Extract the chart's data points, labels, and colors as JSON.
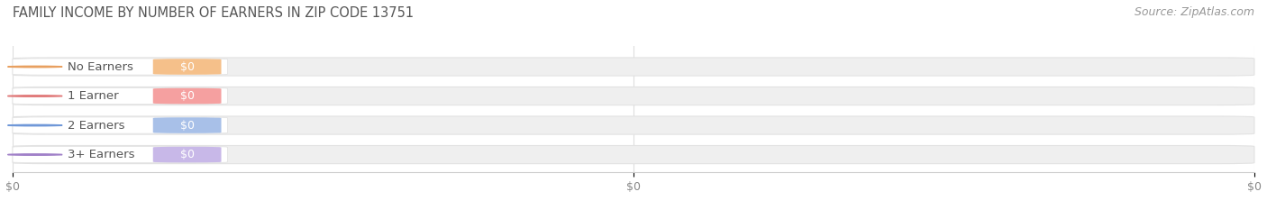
{
  "title": "FAMILY INCOME BY NUMBER OF EARNERS IN ZIP CODE 13751",
  "source": "Source: ZipAtlas.com",
  "categories": [
    "No Earners",
    "1 Earner",
    "2 Earners",
    "3+ Earners"
  ],
  "values": [
    0,
    0,
    0,
    0
  ],
  "bar_colors": [
    "#f5c08a",
    "#f5a0a0",
    "#a8c0e8",
    "#c8b8e8"
  ],
  "circle_colors": [
    "#e8a060",
    "#e07878",
    "#7098d8",
    "#a080c8"
  ],
  "bar_bg_color": "#efefef",
  "bar_bg_edge_color": "#e2e2e2",
  "label_text_color": "#ffffff",
  "category_text_color": "#555555",
  "title_color": "#555555",
  "source_color": "#999999",
  "background_color": "#ffffff",
  "title_fontsize": 10.5,
  "source_fontsize": 9,
  "bar_label_fontsize": 9,
  "category_fontsize": 9.5
}
